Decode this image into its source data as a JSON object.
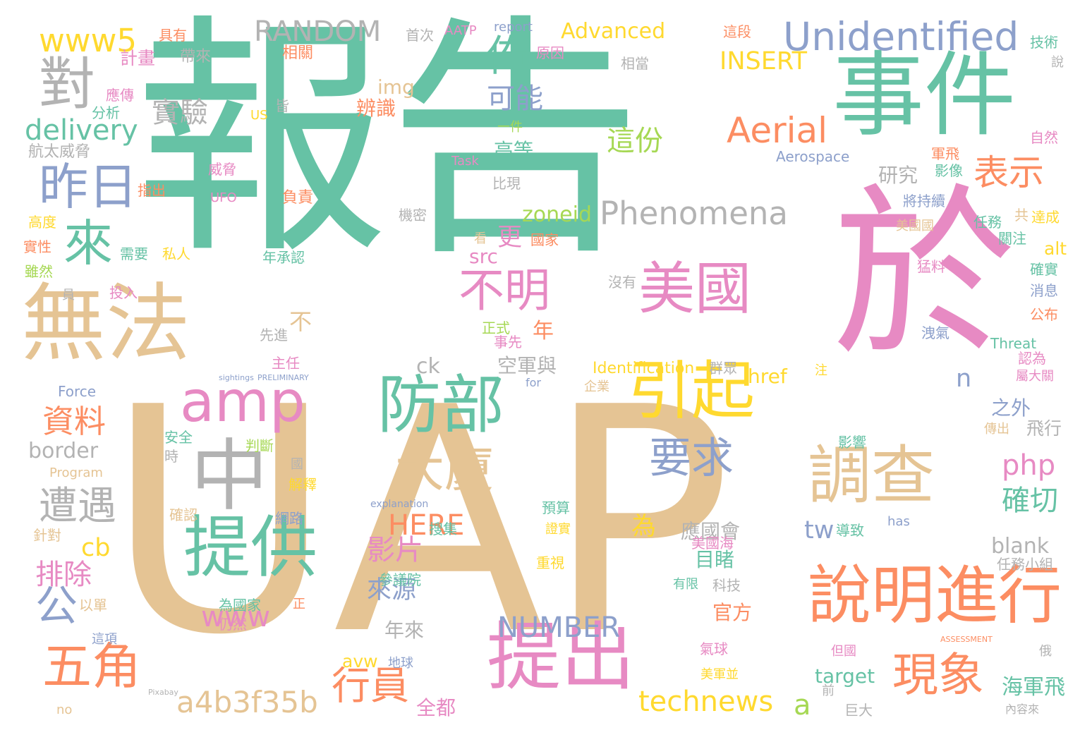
{
  "palette": {
    "teal": "#66c2a5",
    "tan": "#e5c494",
    "pink": "#e78ac3",
    "gray": "#b3b3b3",
    "orange": "#fc8d62",
    "yellow": "#ffd92f",
    "blue": "#8da0cb",
    "green": "#a6d854"
  },
  "words": [
    {
      "text": "報告",
      "color": "teal"
    },
    {
      "text": "UAP",
      "color": "tan"
    },
    {
      "text": "於",
      "color": "pink"
    },
    {
      "text": "事件",
      "color": "teal"
    },
    {
      "text": "無法",
      "color": "tan"
    },
    {
      "text": "美國",
      "color": "pink"
    },
    {
      "text": "中",
      "color": "gray"
    },
    {
      "text": "提出",
      "color": "pink"
    },
    {
      "text": "提供",
      "color": "teal"
    },
    {
      "text": "防部",
      "color": "teal"
    },
    {
      "text": "調查",
      "color": "tan"
    },
    {
      "text": "引起",
      "color": "yellow"
    },
    {
      "text": "說明進行",
      "color": "orange"
    },
    {
      "text": "amp",
      "color": "pink"
    },
    {
      "text": "Unidentified",
      "color": "blue"
    },
    {
      "text": "對",
      "color": "gray"
    },
    {
      "text": "來",
      "color": "teal"
    },
    {
      "text": "昨日",
      "color": "blue"
    },
    {
      "text": "不明",
      "color": "pink"
    },
    {
      "text": "大廈",
      "color": "tan"
    },
    {
      "text": "要求",
      "color": "blue"
    },
    {
      "text": "五角",
      "color": "orange"
    },
    {
      "text": "現象",
      "color": "orange"
    },
    {
      "text": "Aerial",
      "color": "orange"
    },
    {
      "text": "Phenomena",
      "color": "gray"
    },
    {
      "text": "公",
      "color": "blue"
    },
    {
      "text": "佈",
      "color": "teal"
    },
    {
      "text": "RANDOM",
      "color": "gray"
    },
    {
      "text": "www5",
      "color": "yellow"
    },
    {
      "text": "delivery",
      "color": "teal"
    },
    {
      "text": "表示",
      "color": "orange"
    },
    {
      "text": "遭遇",
      "color": "gray"
    },
    {
      "text": "a4b3f35b",
      "color": "tan"
    },
    {
      "text": "technews",
      "color": "yellow"
    },
    {
      "text": "行員",
      "color": "orange"
    },
    {
      "text": "可能",
      "color": "blue"
    },
    {
      "text": "這份",
      "color": "green"
    },
    {
      "text": "INSERT",
      "color": "yellow"
    },
    {
      "text": "實驗",
      "color": "gray"
    },
    {
      "text": "資料",
      "color": "orange"
    },
    {
      "text": "php",
      "color": "pink"
    },
    {
      "text": "確切",
      "color": "teal"
    },
    {
      "text": "NUMBER",
      "color": "blue"
    },
    {
      "text": "HERE",
      "color": "orange"
    },
    {
      "text": "影片",
      "color": "pink"
    },
    {
      "text": "www",
      "color": "pink"
    },
    {
      "text": "排除",
      "color": "pink"
    },
    {
      "text": "來源",
      "color": "blue"
    },
    {
      "text": "tw",
      "color": "blue"
    },
    {
      "text": "cb",
      "color": "yellow"
    },
    {
      "text": "border",
      "color": "gray"
    },
    {
      "text": "a",
      "color": "green"
    },
    {
      "text": "海軍飛",
      "color": "teal"
    },
    {
      "text": "blank",
      "color": "gray"
    },
    {
      "text": "Advanced",
      "color": "yellow"
    },
    {
      "text": "年",
      "color": "orange"
    },
    {
      "text": "更",
      "color": "pink"
    },
    {
      "text": "zoneid",
      "color": "green"
    },
    {
      "text": "img",
      "color": "tan"
    },
    {
      "text": "辨識",
      "color": "orange"
    },
    {
      "text": "高等",
      "color": "teal"
    },
    {
      "text": "研究",
      "color": "gray"
    },
    {
      "text": "空軍與",
      "color": "gray"
    },
    {
      "text": "之外",
      "color": "blue"
    },
    {
      "text": "應國會",
      "color": "gray"
    },
    {
      "text": "目睹",
      "color": "teal"
    },
    {
      "text": "為",
      "color": "yellow"
    },
    {
      "text": "ck",
      "color": "gray"
    },
    {
      "text": "n",
      "color": "blue"
    },
    {
      "text": "href",
      "color": "yellow"
    },
    {
      "text": "avw",
      "color": "yellow"
    },
    {
      "text": "target",
      "color": "teal"
    },
    {
      "text": "全都",
      "color": "pink"
    },
    {
      "text": "年來",
      "color": "gray"
    },
    {
      "text": "Identification",
      "color": "yellow"
    },
    {
      "text": "官方",
      "color": "orange"
    },
    {
      "text": "src",
      "color": "pink"
    },
    {
      "text": "alt",
      "color": "yellow"
    },
    {
      "text": "不",
      "color": "tan"
    },
    {
      "text": "飛行",
      "color": "gray"
    },
    {
      "text": "具有",
      "color": "orange"
    },
    {
      "text": "計畫",
      "color": "pink"
    },
    {
      "text": "相關",
      "color": "orange"
    },
    {
      "text": "帶來",
      "color": "gray"
    },
    {
      "text": "首次",
      "color": "gray"
    },
    {
      "text": "AATP",
      "color": "pink"
    },
    {
      "text": "report",
      "color": "blue"
    },
    {
      "text": "這段",
      "color": "orange"
    },
    {
      "text": "技術",
      "color": "teal"
    },
    {
      "text": "原因",
      "color": "pink"
    },
    {
      "text": "相當",
      "color": "gray"
    },
    {
      "text": "說",
      "color": "gray"
    },
    {
      "text": "應傳",
      "color": "pink"
    },
    {
      "text": "分析",
      "color": "teal"
    },
    {
      "text": "皆",
      "color": "gray"
    },
    {
      "text": "US",
      "color": "yellow"
    },
    {
      "text": "一件",
      "color": "green"
    },
    {
      "text": "自然",
      "color": "pink"
    },
    {
      "text": "軍飛",
      "color": "orange"
    },
    {
      "text": "航太威脅",
      "color": "gray"
    },
    {
      "text": "Task",
      "color": "pink"
    },
    {
      "text": "Aerospace",
      "color": "blue"
    },
    {
      "text": "影像",
      "color": "teal"
    },
    {
      "text": "威脅",
      "color": "pink"
    },
    {
      "text": "指出",
      "color": "orange"
    },
    {
      "text": "UFO",
      "color": "pink"
    },
    {
      "text": "比現",
      "color": "gray"
    },
    {
      "text": "負責",
      "color": "orange"
    },
    {
      "text": "將持續",
      "color": "blue"
    },
    {
      "text": "高度",
      "color": "yellow"
    },
    {
      "text": "機密",
      "color": "gray"
    },
    {
      "text": "任務",
      "color": "teal"
    },
    {
      "text": "共",
      "color": "tan"
    },
    {
      "text": "達成",
      "color": "yellow"
    },
    {
      "text": "實性",
      "color": "orange"
    },
    {
      "text": "需要",
      "color": "teal"
    },
    {
      "text": "私人",
      "color": "yellow"
    },
    {
      "text": "年承認",
      "color": "teal"
    },
    {
      "text": "看",
      "color": "tan"
    },
    {
      "text": "國家",
      "color": "orange"
    },
    {
      "text": "美國國",
      "color": "tan"
    },
    {
      "text": "關注",
      "color": "teal"
    },
    {
      "text": "雖然",
      "color": "green"
    },
    {
      "text": "猛料",
      "color": "pink"
    },
    {
      "text": "確實",
      "color": "teal"
    },
    {
      "text": "員",
      "color": "gray"
    },
    {
      "text": "投入",
      "color": "pink"
    },
    {
      "text": "沒有",
      "color": "gray"
    },
    {
      "text": "消息",
      "color": "blue"
    },
    {
      "text": "公布",
      "color": "orange"
    },
    {
      "text": "正式",
      "color": "green"
    },
    {
      "text": "事先",
      "color": "pink"
    },
    {
      "text": "洩氣",
      "color": "blue"
    },
    {
      "text": "先進",
      "color": "gray"
    },
    {
      "text": "Threat",
      "color": "teal"
    },
    {
      "text": "主任",
      "color": "pink"
    },
    {
      "text": "認為",
      "color": "pink"
    },
    {
      "text": "sightings",
      "color": "blue"
    },
    {
      "text": "PRELIMINARY",
      "color": "blue"
    },
    {
      "text": "群眾",
      "color": "gray"
    },
    {
      "text": "屬大關",
      "color": "pink"
    },
    {
      "text": "注",
      "color": "yellow"
    },
    {
      "text": "Force",
      "color": "blue"
    },
    {
      "text": "for",
      "color": "blue"
    },
    {
      "text": "企業",
      "color": "tan"
    },
    {
      "text": "傳出",
      "color": "tan"
    },
    {
      "text": "安全",
      "color": "teal"
    },
    {
      "text": "判斷",
      "color": "green"
    },
    {
      "text": "時",
      "color": "gray"
    },
    {
      "text": "影響",
      "color": "teal"
    },
    {
      "text": "國",
      "color": "gray"
    },
    {
      "text": "Program",
      "color": "tan"
    },
    {
      "text": "解釋",
      "color": "yellow"
    },
    {
      "text": "explanation",
      "color": "blue"
    },
    {
      "text": "預算",
      "color": "teal"
    },
    {
      "text": "確認",
      "color": "tan"
    },
    {
      "text": "網路",
      "color": "blue"
    },
    {
      "text": "has",
      "color": "blue"
    },
    {
      "text": "證實",
      "color": "yellow"
    },
    {
      "text": "導致",
      "color": "teal"
    },
    {
      "text": "針對",
      "color": "tan"
    },
    {
      "text": "搜集",
      "color": "teal"
    },
    {
      "text": "美國海",
      "color": "pink"
    },
    {
      "text": "任務小組",
      "color": "gray"
    },
    {
      "text": "重視",
      "color": "yellow"
    },
    {
      "text": "參議院",
      "color": "teal"
    },
    {
      "text": "科技",
      "color": "gray"
    },
    {
      "text": "有限",
      "color": "teal"
    },
    {
      "text": "以單",
      "color": "tan"
    },
    {
      "text": "為國家",
      "color": "teal"
    },
    {
      "text": "正",
      "color": "orange"
    },
    {
      "text": "仍然",
      "color": "pink"
    },
    {
      "text": "這項",
      "color": "blue"
    },
    {
      "text": "氣球",
      "color": "pink"
    },
    {
      "text": "ASSESSMENT",
      "color": "orange"
    },
    {
      "text": "但國",
      "color": "pink"
    },
    {
      "text": "俄",
      "color": "gray"
    },
    {
      "text": "地球",
      "color": "blue"
    },
    {
      "text": "美軍並",
      "color": "yellow"
    },
    {
      "text": "Pixabay",
      "color": "gray"
    },
    {
      "text": "前",
      "color": "gray"
    },
    {
      "text": "巨大",
      "color": "gray"
    },
    {
      "text": "內容來",
      "color": "gray"
    },
    {
      "text": "no",
      "color": "tan"
    }
  ]
}
